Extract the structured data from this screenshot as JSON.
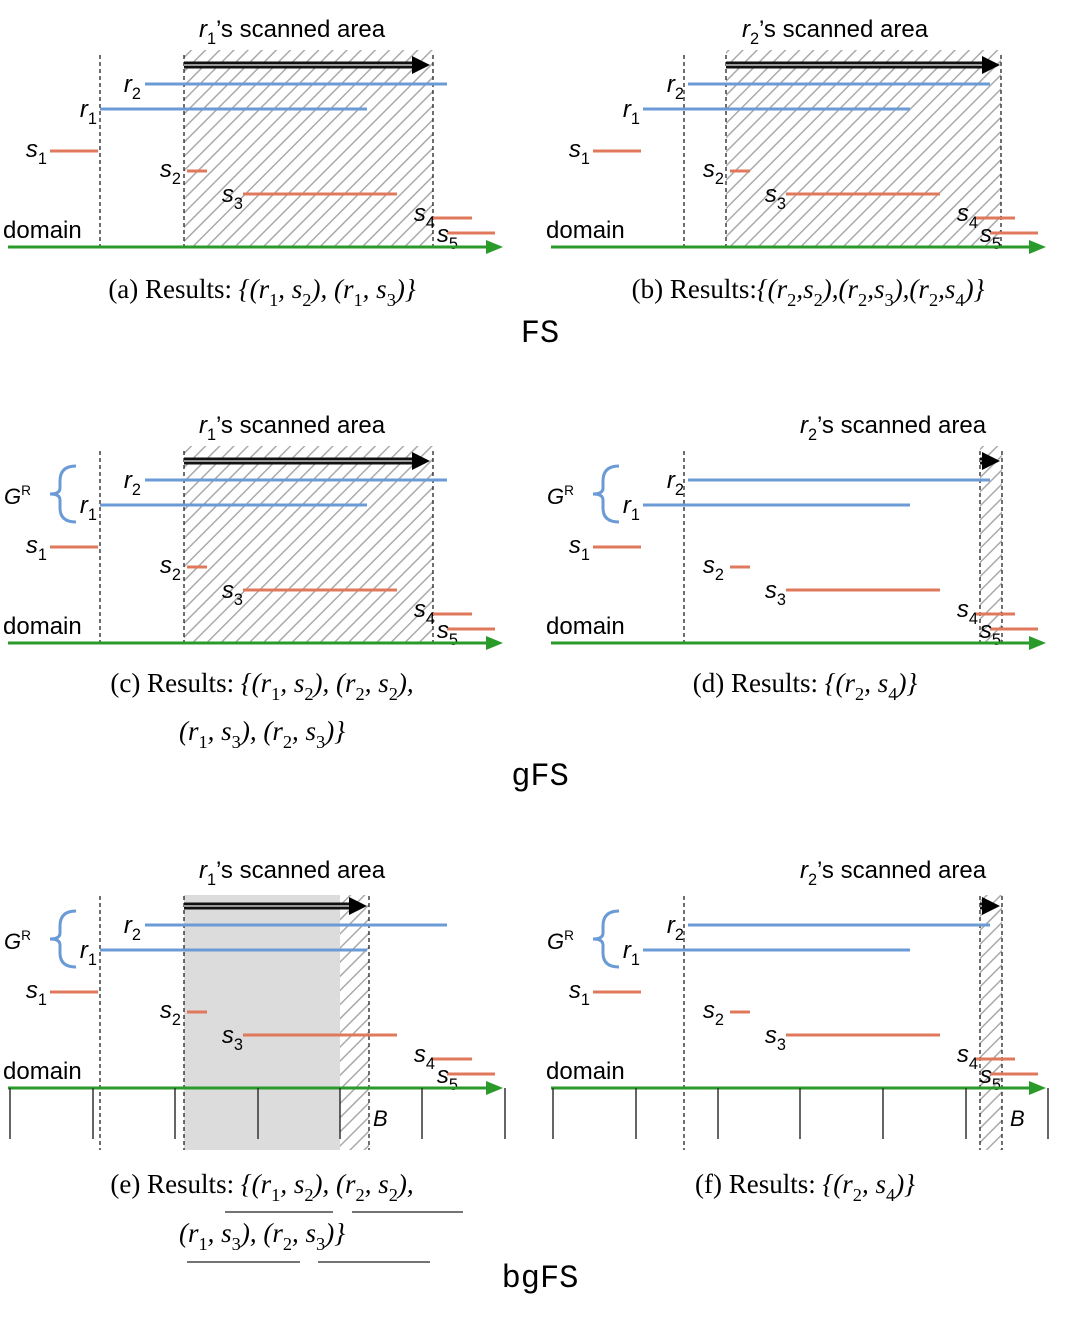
{
  "sections": [
    {
      "label": "FS",
      "panels": [
        {
          "title": [
            {
              "math": "r",
              "sub": "1"
            },
            {
              "roman": "’s scanned area"
            }
          ],
          "intervals": [
            {
              "math": "r",
              "sub": "2"
            },
            {
              "math": "r",
              "sub": "1"
            },
            {
              "math": "s",
              "sub": "1"
            },
            {
              "math": "s",
              "sub": "2"
            },
            {
              "math": "s",
              "sub": "3"
            },
            {
              "math": "s",
              "sub": "4"
            },
            {
              "math": "s",
              "sub": "5"
            }
          ],
          "domain": "domain",
          "caption": [
            [
              {
                "roman": "(a) Results: "
              },
              {
                "math": "{(r",
                "sub": "1"
              },
              {
                "math": ", s",
                "sub": "2"
              },
              {
                "math": "), (r",
                "sub": "1"
              },
              {
                "math": ", s",
                "sub": "3"
              },
              {
                "math": ")}"
              }
            ]
          ]
        },
        {
          "title": [
            {
              "math": "r",
              "sub": "2"
            },
            {
              "roman": "’s scanned area"
            }
          ],
          "intervals": [
            {
              "math": "r",
              "sub": "2"
            },
            {
              "math": "r",
              "sub": "1"
            },
            {
              "math": "s",
              "sub": "1"
            },
            {
              "math": "s",
              "sub": "2"
            },
            {
              "math": "s",
              "sub": "3"
            },
            {
              "math": "s",
              "sub": "4"
            },
            {
              "math": "s",
              "sub": "5"
            }
          ],
          "domain": "domain",
          "caption": [
            [
              {
                "roman": "(b) Results:"
              },
              {
                "math": "{(r",
                "sub": "2"
              },
              {
                "math": ",s",
                "sub": "2"
              },
              {
                "math": "),(r",
                "sub": "2"
              },
              {
                "math": ",s",
                "sub": "3"
              },
              {
                "math": "),(r",
                "sub": "2"
              },
              {
                "math": ",s",
                "sub": "4"
              },
              {
                "math": ")}"
              }
            ]
          ]
        }
      ]
    },
    {
      "label": "gFS",
      "panels": [
        {
          "title": [
            {
              "math": "r",
              "sub": "1"
            },
            {
              "roman": "’s scanned area"
            }
          ],
          "group": {
            "math": "G",
            "sup": "R"
          },
          "intervals": [
            {
              "math": "r",
              "sub": "2"
            },
            {
              "math": "r",
              "sub": "1"
            },
            {
              "math": "s",
              "sub": "1"
            },
            {
              "math": "s",
              "sub": "2"
            },
            {
              "math": "s",
              "sub": "3"
            },
            {
              "math": "s",
              "sub": "4"
            },
            {
              "math": "s",
              "sub": "5"
            }
          ],
          "domain": "domain",
          "caption": [
            [
              {
                "roman": "(c) Results: "
              },
              {
                "math": "{(r",
                "sub": "1"
              },
              {
                "math": ", s",
                "sub": "2"
              },
              {
                "math": "), (r",
                "sub": "2"
              },
              {
                "math": ", s",
                "sub": "2"
              },
              {
                "math": "),"
              }
            ],
            [
              {
                "math": "(r",
                "sub": "1"
              },
              {
                "math": ", s",
                "sub": "3"
              },
              {
                "math": "), (r",
                "sub": "2"
              },
              {
                "math": ", s",
                "sub": "3"
              },
              {
                "math": ")}"
              }
            ]
          ]
        },
        {
          "title": [
            {
              "math": "r",
              "sub": "2"
            },
            {
              "roman": "’s scanned area"
            }
          ],
          "group": {
            "math": "G",
            "sup": "R"
          },
          "intervals": [
            {
              "math": "r",
              "sub": "2"
            },
            {
              "math": "r",
              "sub": "1"
            },
            {
              "math": "s",
              "sub": "1"
            },
            {
              "math": "s",
              "sub": "2"
            },
            {
              "math": "s",
              "sub": "3"
            },
            {
              "math": "s",
              "sub": "4"
            },
            {
              "math": "s",
              "sub": "5"
            }
          ],
          "domain": "domain",
          "caption": [
            [
              {
                "roman": "(d) Results: "
              },
              {
                "math": "{(r",
                "sub": "2"
              },
              {
                "math": ", s",
                "sub": "4"
              },
              {
                "math": ")}"
              }
            ]
          ]
        }
      ]
    },
    {
      "label": "bgFS",
      "panels": [
        {
          "title": [
            {
              "math": "r",
              "sub": "1"
            },
            {
              "roman": "’s scanned area"
            }
          ],
          "group": {
            "math": "G",
            "sup": "R"
          },
          "intervals": [
            {
              "math": "r",
              "sub": "2"
            },
            {
              "math": "r",
              "sub": "1"
            },
            {
              "math": "s",
              "sub": "1"
            },
            {
              "math": "s",
              "sub": "2"
            },
            {
              "math": "s",
              "sub": "3"
            },
            {
              "math": "s",
              "sub": "4"
            },
            {
              "math": "s",
              "sub": "5"
            }
          ],
          "domain": "domain",
          "bucket": "B",
          "caption": [
            [
              {
                "roman": "(e) Results: "
              },
              {
                "math": "{(r",
                "sub": "1"
              },
              {
                "math": ", s",
                "sub": "2"
              },
              {
                "math": "), (r",
                "sub": "2"
              },
              {
                "math": ", s",
                "sub": "2"
              },
              {
                "math": "),"
              }
            ],
            [
              {
                "math": "(r",
                "sub": "1"
              },
              {
                "math": ", s",
                "sub": "3"
              },
              {
                "math": "), (r",
                "sub": "2"
              },
              {
                "math": ", s",
                "sub": "3"
              },
              {
                "math": ")}"
              }
            ]
          ]
        },
        {
          "title": [
            {
              "math": "r",
              "sub": "2"
            },
            {
              "roman": "’s scanned area"
            }
          ],
          "group": {
            "math": "G",
            "sup": "R"
          },
          "intervals": [
            {
              "math": "r",
              "sub": "2"
            },
            {
              "math": "r",
              "sub": "1"
            },
            {
              "math": "s",
              "sub": "1"
            },
            {
              "math": "s",
              "sub": "2"
            },
            {
              "math": "s",
              "sub": "3"
            },
            {
              "math": "s",
              "sub": "4"
            },
            {
              "math": "s",
              "sub": "5"
            }
          ],
          "domain": "domain",
          "bucket": "B",
          "caption": [
            [
              {
                "roman": "(f) Results: "
              },
              {
                "math": "{(r",
                "sub": "2"
              },
              {
                "math": ", s",
                "sub": "4"
              },
              {
                "math": ")}"
              }
            ]
          ]
        }
      ]
    }
  ]
}
